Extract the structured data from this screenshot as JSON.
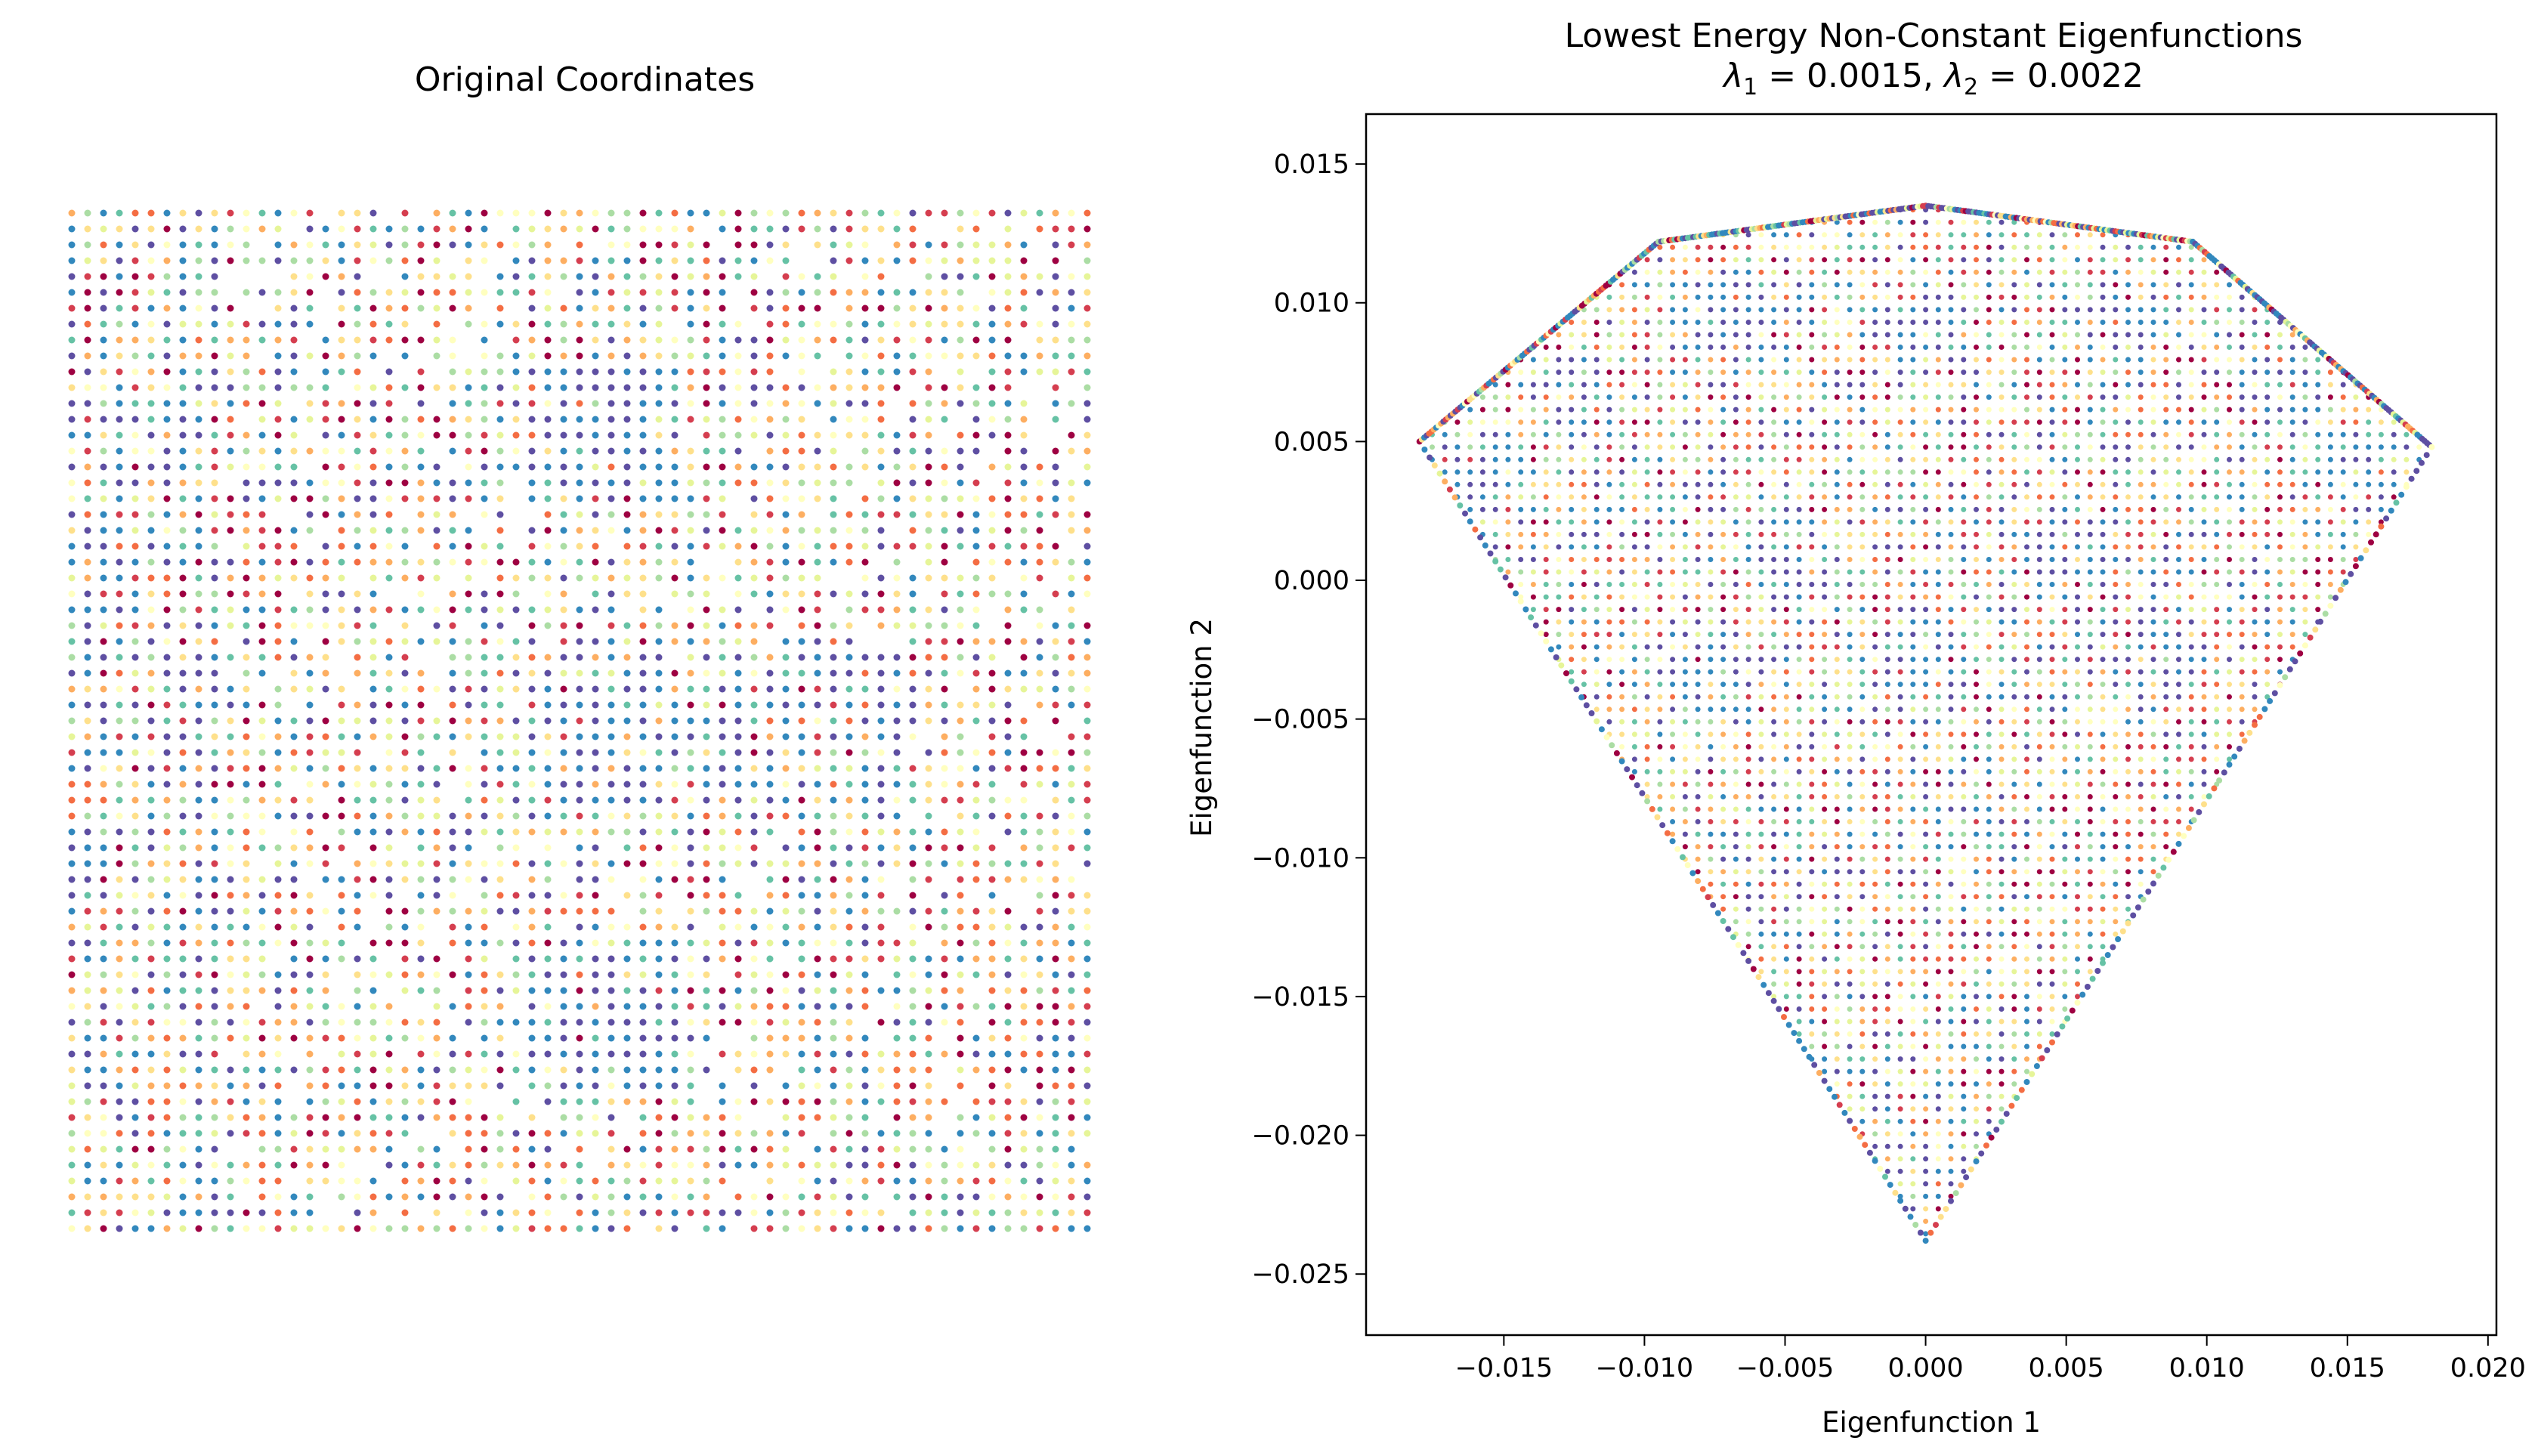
{
  "chart_data": [
    {
      "type": "scatter",
      "title": "Original Coordinates",
      "axis_visible": false,
      "colormap": "Spectral",
      "grid": false,
      "points": "regular square grid of points colored by value"
    },
    {
      "type": "scatter",
      "title_line1": "Lowest Energy Non-Constant Eigenfunctions",
      "title_line2": "λ1 = 0.0015, λ2 = 0.0022",
      "title_parts": {
        "l1_sym": "λ",
        "l1_sub": "1",
        "l1_val": " = 0.0015, ",
        "l2_sym": "λ",
        "l2_sub": "2",
        "l2_val": " = 0.0022"
      },
      "xlabel": "Eigenfunction 1",
      "ylabel": "Eigenfunction 2",
      "xlim": [
        -0.0199,
        0.0203
      ],
      "ylim": [
        -0.0272,
        0.0168
      ],
      "xticks": [
        "−0.015",
        "−0.010",
        "−0.005",
        "0.000",
        "0.005",
        "0.010",
        "0.015",
        "0.020"
      ],
      "xtick_values": [
        -0.015,
        -0.01,
        -0.005,
        0.0,
        0.005,
        0.01,
        0.015,
        0.02
      ],
      "yticks": [
        "0.015",
        "0.010",
        "0.005",
        "0.000",
        "−0.005",
        "−0.010",
        "−0.015",
        "−0.020",
        "−0.025"
      ],
      "ytick_values": [
        0.015,
        0.01,
        0.005,
        0.0,
        -0.005,
        -0.01,
        -0.015,
        -0.02,
        -0.025
      ],
      "grid": false,
      "colormap": "Spectral",
      "outline_vertices": [
        [
          -0.018,
          0.005
        ],
        [
          -0.0095,
          0.0122
        ],
        [
          0.0,
          0.0135
        ],
        [
          0.0095,
          0.0122
        ],
        [
          0.018,
          0.0048
        ],
        [
          0.0,
          -0.0238
        ]
      ]
    }
  ],
  "colors": {
    "spectral": [
      "#9e0142",
      "#d53e4f",
      "#f46d43",
      "#fdae61",
      "#fee08b",
      "#ffffbf",
      "#e6f598",
      "#abdda4",
      "#66c2a5",
      "#3288bd",
      "#5e4fa2"
    ]
  }
}
